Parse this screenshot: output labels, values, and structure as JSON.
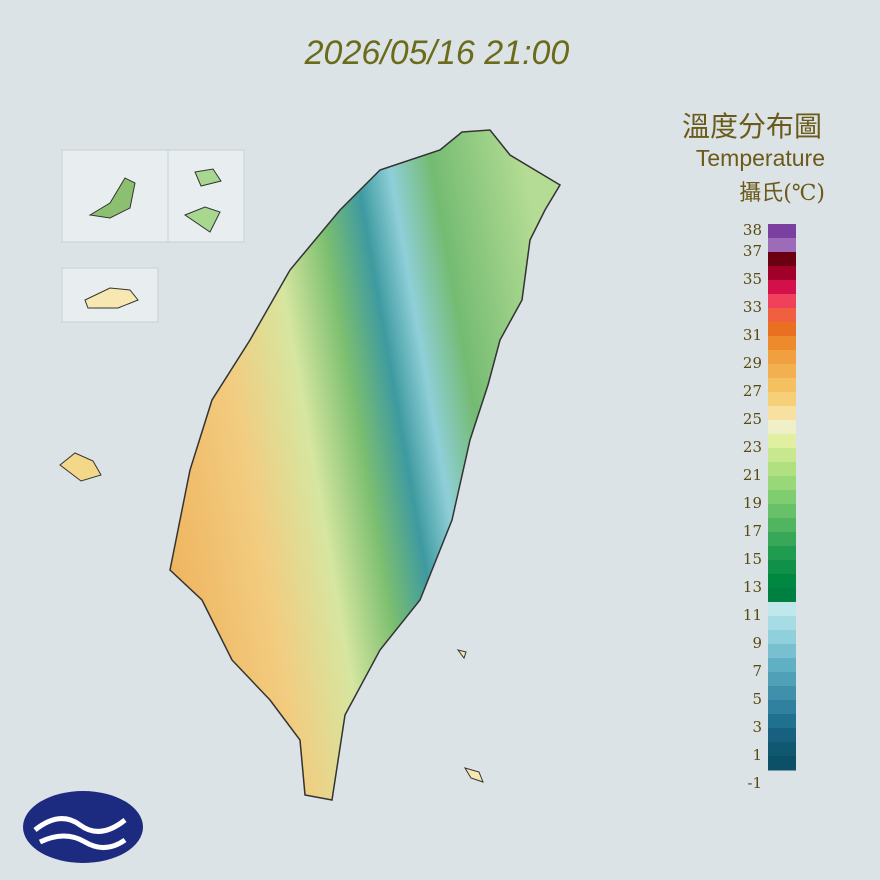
{
  "title": "2026/05/16 21:00",
  "legend": {
    "title_zh": "溫度分布圖",
    "title_en": "Temperature",
    "unit": "攝氏(℃)",
    "ticks": [
      38,
      37,
      35,
      33,
      31,
      29,
      27,
      25,
      23,
      21,
      19,
      17,
      15,
      13,
      11,
      9,
      7,
      5,
      3,
      1,
      -1
    ],
    "colors": [
      "#7b3fa0",
      "#9c6cb8",
      "#6a0010",
      "#a0002a",
      "#d4104a",
      "#f0405a",
      "#f06040",
      "#e87020",
      "#ec8a2c",
      "#f0a040",
      "#f2b050",
      "#f4c060",
      "#f6d078",
      "#f8e0a0",
      "#f0f0c8",
      "#e0f0a0",
      "#c8e890",
      "#b0e080",
      "#98d878",
      "#80cc70",
      "#68c068",
      "#50b460",
      "#38a858",
      "#209c50",
      "#109048",
      "#008840",
      "#008040",
      "#c0e8ec",
      "#a8dce4",
      "#90d0dc",
      "#78c0d0",
      "#60b0c4",
      "#50a0b8",
      "#4090ac",
      "#3080a0",
      "#207090",
      "#186080",
      "#105870",
      "#0c5068"
    ]
  }
}
